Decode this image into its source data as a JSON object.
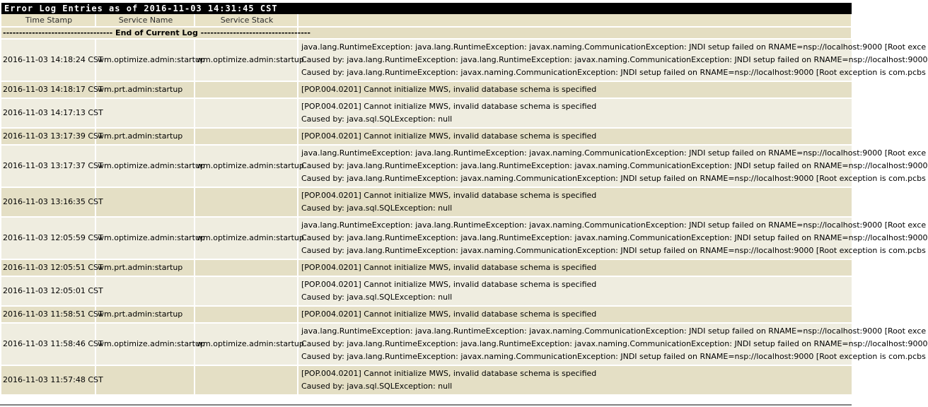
{
  "title": "Error Log Entries as of 2016-11-03 14:31:45 CST",
  "columns": {
    "timestamp": "Time Stamp",
    "service_name": "Service Name",
    "service_stack": "Service Stack",
    "message": ""
  },
  "end_marker": "---------------------------------- End of Current Log ----------------------------------",
  "rows": [
    {
      "timestamp": "2016-11-03 14:18:24 CST",
      "service_name": "wm.optimize.admin:startup",
      "service_stack": "wm.optimize.admin:startup",
      "messages": [
        "java.lang.RuntimeException: java.lang.RuntimeException: javax.naming.CommunicationException: JNDI setup failed on RNAME=nsp://localhost:9000 [Root exce",
        "Caused by: java.lang.RuntimeException: java.lang.RuntimeException: javax.naming.CommunicationException: JNDI setup failed on RNAME=nsp://localhost:9000",
        "Caused by: java.lang.RuntimeException: javax.naming.CommunicationException: JNDI setup failed on RNAME=nsp://localhost:9000 [Root exception is com.pcbs"
      ]
    },
    {
      "timestamp": "2016-11-03 14:18:17 CST",
      "service_name": "wm.prt.admin:startup",
      "service_stack": "",
      "messages": [
        "[POP.004.0201] Cannot initialize MWS, invalid database schema is specified"
      ]
    },
    {
      "timestamp": "2016-11-03 14:17:13 CST",
      "service_name": "",
      "service_stack": "",
      "messages": [
        "[POP.004.0201] Cannot initialize MWS, invalid database schema is specified",
        "Caused by: java.sql.SQLException: null"
      ]
    },
    {
      "timestamp": "2016-11-03 13:17:39 CST",
      "service_name": "wm.prt.admin:startup",
      "service_stack": "",
      "messages": [
        "[POP.004.0201] Cannot initialize MWS, invalid database schema is specified"
      ]
    },
    {
      "timestamp": "2016-11-03 13:17:37 CST",
      "service_name": "wm.optimize.admin:startup",
      "service_stack": "wm.optimize.admin:startup",
      "messages": [
        "java.lang.RuntimeException: java.lang.RuntimeException: javax.naming.CommunicationException: JNDI setup failed on RNAME=nsp://localhost:9000 [Root exce",
        "Caused by: java.lang.RuntimeException: java.lang.RuntimeException: javax.naming.CommunicationException: JNDI setup failed on RNAME=nsp://localhost:9000",
        "Caused by: java.lang.RuntimeException: javax.naming.CommunicationException: JNDI setup failed on RNAME=nsp://localhost:9000 [Root exception is com.pcbs"
      ]
    },
    {
      "timestamp": "2016-11-03 13:16:35 CST",
      "service_name": "",
      "service_stack": "",
      "messages": [
        "[POP.004.0201] Cannot initialize MWS, invalid database schema is specified",
        "Caused by: java.sql.SQLException: null"
      ]
    },
    {
      "timestamp": "2016-11-03 12:05:59 CST",
      "service_name": "wm.optimize.admin:startup",
      "service_stack": "wm.optimize.admin:startup",
      "messages": [
        "java.lang.RuntimeException: java.lang.RuntimeException: javax.naming.CommunicationException: JNDI setup failed on RNAME=nsp://localhost:9000 [Root exce",
        "Caused by: java.lang.RuntimeException: java.lang.RuntimeException: javax.naming.CommunicationException: JNDI setup failed on RNAME=nsp://localhost:9000",
        "Caused by: java.lang.RuntimeException: javax.naming.CommunicationException: JNDI setup failed on RNAME=nsp://localhost:9000 [Root exception is com.pcbs"
      ]
    },
    {
      "timestamp": "2016-11-03 12:05:51 CST",
      "service_name": "wm.prt.admin:startup",
      "service_stack": "",
      "messages": [
        "[POP.004.0201] Cannot initialize MWS, invalid database schema is specified"
      ]
    },
    {
      "timestamp": "2016-11-03 12:05:01 CST",
      "service_name": "",
      "service_stack": "",
      "messages": [
        "[POP.004.0201] Cannot initialize MWS, invalid database schema is specified",
        "Caused by: java.sql.SQLException: null"
      ]
    },
    {
      "timestamp": "2016-11-03 11:58:51 CST",
      "service_name": "wm.prt.admin:startup",
      "service_stack": "",
      "messages": [
        "[POP.004.0201] Cannot initialize MWS, invalid database schema is specified"
      ]
    },
    {
      "timestamp": "2016-11-03 11:58:46 CST",
      "service_name": "wm.optimize.admin:startup",
      "service_stack": "wm.optimize.admin:startup",
      "messages": [
        "java.lang.RuntimeException: java.lang.RuntimeException: javax.naming.CommunicationException: JNDI setup failed on RNAME=nsp://localhost:9000 [Root exce",
        "Caused by: java.lang.RuntimeException: java.lang.RuntimeException: javax.naming.CommunicationException: JNDI setup failed on RNAME=nsp://localhost:9000",
        "Caused by: java.lang.RuntimeException: javax.naming.CommunicationException: JNDI setup failed on RNAME=nsp://localhost:9000 [Root exception is com.pcbs"
      ]
    },
    {
      "timestamp": "2016-11-03 11:57:48 CST",
      "service_name": "",
      "service_stack": "",
      "messages": [
        "[POP.004.0201] Cannot initialize MWS, invalid database schema is specified",
        "Caused by: java.sql.SQLException: null"
      ]
    }
  ]
}
